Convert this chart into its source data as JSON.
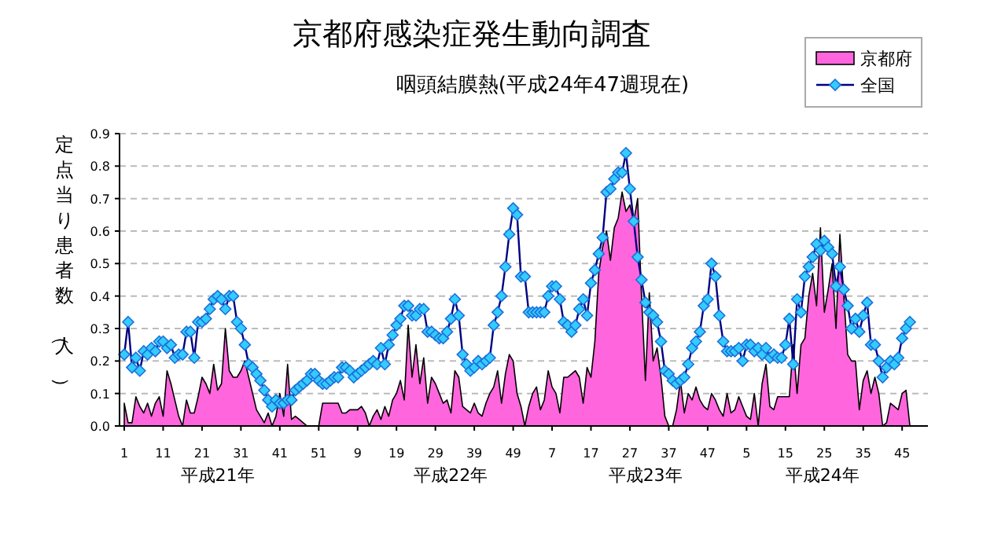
{
  "chart_data": {
    "type": "area",
    "title": "京都府感染症発生動向調査",
    "subtitle": "咽頭結膜熱(平成24年47週現在)",
    "ylabel": "定点当り患者数（人）",
    "annotations": [
      "平成21年",
      "平成22年",
      "平成23年",
      "平成24年"
    ],
    "categories": [
      "1",
      null,
      null,
      null,
      null,
      null,
      null,
      null,
      null,
      null,
      "11",
      null,
      null,
      null,
      null,
      null,
      null,
      null,
      null,
      null,
      "21",
      null,
      null,
      null,
      null,
      null,
      null,
      null,
      null,
      null,
      "31",
      null,
      null,
      null,
      null,
      null,
      null,
      null,
      null,
      null,
      "41",
      null,
      null,
      null,
      null,
      null,
      null,
      null,
      null,
      null,
      "51",
      null,
      null,
      null,
      null,
      null,
      null,
      null,
      null,
      null,
      "9",
      null,
      null,
      null,
      null,
      null,
      null,
      null,
      null,
      null,
      "19",
      null,
      null,
      null,
      null,
      null,
      null,
      null,
      null,
      null,
      "29",
      null,
      null,
      null,
      null,
      null,
      null,
      null,
      null,
      null,
      "39",
      null,
      null,
      null,
      null,
      null,
      null,
      null,
      null,
      null,
      "49",
      null,
      null,
      null,
      null,
      null,
      null,
      null,
      null,
      null,
      "7",
      null,
      null,
      null,
      null,
      null,
      null,
      null,
      null,
      null,
      "17",
      null,
      null,
      null,
      null,
      null,
      null,
      null,
      null,
      null,
      "27",
      null,
      null,
      null,
      null,
      null,
      null,
      null,
      null,
      null,
      "37",
      null,
      null,
      null,
      null,
      null,
      null,
      null,
      null,
      null,
      "47",
      null,
      null,
      null,
      null,
      null,
      null,
      null,
      null,
      null,
      "5",
      null,
      null,
      null,
      null,
      null,
      null,
      null,
      null,
      null,
      "15",
      null,
      null,
      null,
      null,
      null,
      null,
      null,
      null,
      null,
      "25",
      null,
      null,
      null,
      null,
      null,
      null,
      null,
      null,
      null,
      "35",
      null,
      null,
      null,
      null,
      null,
      null,
      null,
      null,
      null,
      "45",
      null,
      null
    ],
    "series": [
      {
        "name": "京都府",
        "color": "#ff66dd",
        "values": [
          0.07,
          0.01,
          0.01,
          0.09,
          0.06,
          0.04,
          0.07,
          0.03,
          0.07,
          0.09,
          0.03,
          0.17,
          0.13,
          0.08,
          0.03,
          0.0,
          0.08,
          0.04,
          0.04,
          0.09,
          0.15,
          0.13,
          0.1,
          0.19,
          0.11,
          0.13,
          0.3,
          0.17,
          0.15,
          0.15,
          0.17,
          0.2,
          0.15,
          0.1,
          0.05,
          0.03,
          0.01,
          0.04,
          0.0,
          0.03,
          0.1,
          0.03,
          0.19,
          0.02,
          0.03,
          0.02,
          0.01,
          0.0,
          0.0,
          0.0,
          0.0,
          0.07,
          0.07,
          0.07,
          0.07,
          0.07,
          0.04,
          0.04,
          0.05,
          0.05,
          0.05,
          0.06,
          0.04,
          0.0,
          0.03,
          0.05,
          0.02,
          0.06,
          0.03,
          0.08,
          0.1,
          0.14,
          0.08,
          0.31,
          0.15,
          0.25,
          0.13,
          0.21,
          0.07,
          0.15,
          0.13,
          0.1,
          0.07,
          0.08,
          0.04,
          0.17,
          0.15,
          0.06,
          0.05,
          0.04,
          0.07,
          0.04,
          0.03,
          0.07,
          0.1,
          0.12,
          0.17,
          0.07,
          0.16,
          0.22,
          0.2,
          0.1,
          0.06,
          0.0,
          0.06,
          0.1,
          0.12,
          0.05,
          0.08,
          0.17,
          0.12,
          0.1,
          0.04,
          0.15,
          0.15,
          0.16,
          0.17,
          0.15,
          0.07,
          0.18,
          0.15,
          0.26,
          0.47,
          0.55,
          0.6,
          0.51,
          0.61,
          0.64,
          0.72,
          0.66,
          0.68,
          0.63,
          0.7,
          0.4,
          0.14,
          0.41,
          0.2,
          0.24,
          0.15,
          0.03,
          0.0,
          0.0,
          0.05,
          0.14,
          0.04,
          0.1,
          0.08,
          0.12,
          0.08,
          0.06,
          0.05,
          0.1,
          0.08,
          0.05,
          0.03,
          0.1,
          0.04,
          0.05,
          0.09,
          0.06,
          0.03,
          0.02,
          0.1,
          0.0,
          0.13,
          0.19,
          0.06,
          0.05,
          0.09,
          0.09,
          0.09,
          0.09,
          0.25,
          0.1,
          0.25,
          0.27,
          0.4,
          0.47,
          0.37,
          0.61,
          0.35,
          0.42,
          0.5,
          0.3,
          0.59,
          0.4,
          0.22,
          0.2,
          0.2,
          0.05,
          0.14,
          0.17,
          0.1,
          0.15,
          0.1,
          0.0,
          0.01,
          0.07,
          0.06,
          0.05,
          0.1,
          0.11,
          0.0
        ]
      },
      {
        "name": "全国",
        "type": "line",
        "color": "#33ccff",
        "marker": "diamond",
        "values": [
          0.22,
          0.32,
          0.18,
          0.21,
          0.17,
          0.23,
          0.22,
          0.24,
          0.23,
          0.26,
          0.26,
          0.24,
          0.25,
          0.21,
          0.22,
          0.22,
          0.29,
          0.29,
          0.21,
          0.32,
          0.32,
          0.33,
          0.36,
          0.39,
          0.4,
          0.39,
          0.36,
          0.4,
          0.4,
          0.32,
          0.3,
          0.25,
          0.19,
          0.18,
          0.16,
          0.14,
          0.11,
          0.08,
          0.06,
          0.08,
          0.07,
          0.07,
          0.08,
          0.08,
          0.11,
          0.12,
          0.13,
          0.14,
          0.16,
          0.16,
          0.14,
          0.13,
          0.13,
          0.14,
          0.15,
          0.15,
          0.18,
          0.18,
          0.17,
          0.15,
          0.16,
          0.17,
          0.18,
          0.19,
          0.2,
          0.19,
          0.24,
          0.19,
          0.25,
          0.28,
          0.31,
          0.33,
          0.37,
          0.37,
          0.34,
          0.34,
          0.36,
          0.36,
          0.29,
          0.29,
          0.28,
          0.27,
          0.27,
          0.29,
          0.33,
          0.39,
          0.34,
          0.22,
          0.19,
          0.17,
          0.18,
          0.2,
          0.19,
          0.2,
          0.21,
          0.31,
          0.35,
          0.4,
          0.49,
          0.59,
          0.67,
          0.65,
          0.46,
          0.46,
          0.35,
          0.35,
          0.35,
          0.35,
          0.35,
          0.4,
          0.43,
          0.43,
          0.39,
          0.32,
          0.31,
          0.29,
          0.31,
          0.36,
          0.39,
          0.34,
          0.44,
          0.48,
          0.53,
          0.58,
          0.72,
          0.73,
          0.76,
          0.78,
          0.78,
          0.84,
          0.73,
          0.63,
          0.52,
          0.45,
          0.38,
          0.35,
          0.34,
          0.32,
          0.26,
          0.17,
          0.16,
          0.14,
          0.13,
          0.14,
          0.15,
          0.19,
          0.24,
          0.26,
          0.29,
          0.37,
          0.39,
          0.5,
          0.46,
          0.34,
          0.26,
          0.23,
          0.23,
          0.23,
          0.24,
          0.2,
          0.25,
          0.25,
          0.23,
          0.24,
          0.22,
          0.24,
          0.21,
          0.22,
          0.21,
          0.21,
          0.25,
          0.33,
          0.19,
          0.39,
          0.35,
          0.46,
          0.49,
          0.52,
          0.56,
          0.54,
          0.57,
          0.55,
          0.53,
          0.43,
          0.49,
          0.42,
          0.37,
          0.3,
          0.33,
          0.29,
          0.34,
          0.38,
          0.25,
          0.25,
          0.2,
          0.15,
          0.18,
          0.2,
          0.19,
          0.21,
          0.27,
          0.3,
          0.32
        ]
      }
    ],
    "ylim": [
      0,
      0.9
    ],
    "yticks": [
      {
        "value": 0,
        "label": "0.0"
      },
      {
        "value": 0.1,
        "label": "0.1"
      },
      {
        "value": 0.2,
        "label": "0.2"
      },
      {
        "value": 0.3,
        "label": "0.3"
      },
      {
        "value": 0.4,
        "label": "0.4"
      },
      {
        "value": 0.5,
        "label": "0.5"
      },
      {
        "value": 0.6,
        "label": "0.6"
      },
      {
        "value": 0.7,
        "label": "0.7"
      },
      {
        "value": 0.8,
        "label": "0.8"
      },
      {
        "value": 0.9,
        "label": "0.9"
      }
    ],
    "grid": "y",
    "legend": "top right"
  }
}
